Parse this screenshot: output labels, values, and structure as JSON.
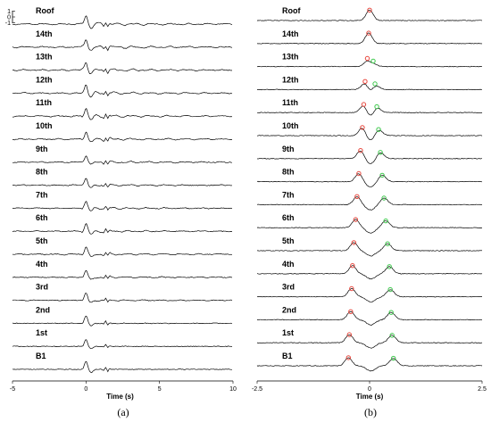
{
  "chart_data": [
    {
      "type": "line",
      "panel_label": "(a)",
      "xlabel": "Time (s)",
      "xlim": [
        -5,
        10
      ],
      "xticks": [
        -5,
        0,
        5,
        10
      ],
      "scale_ticks": [
        1,
        0,
        -1
      ],
      "series": [
        {
          "name": "Roof",
          "pulse": 0,
          "amp": 0.9,
          "noise": 0.28
        },
        {
          "name": "14th",
          "pulse": 0,
          "amp": 0.85,
          "noise": 0.26
        },
        {
          "name": "13th",
          "pulse": 0,
          "amp": 0.85,
          "noise": 0.26
        },
        {
          "name": "12th",
          "pulse": 0,
          "amp": 0.85,
          "noise": 0.25
        },
        {
          "name": "11th",
          "pulse": 0,
          "amp": 0.8,
          "noise": 0.24
        },
        {
          "name": "10th",
          "pulse": 0,
          "amp": 0.8,
          "noise": 0.22
        },
        {
          "name": "9th",
          "pulse": 0,
          "amp": 0.75,
          "noise": 0.2
        },
        {
          "name": "8th",
          "pulse": 0,
          "amp": 0.75,
          "noise": 0.18
        },
        {
          "name": "7th",
          "pulse": 0,
          "amp": 0.7,
          "noise": 0.17
        },
        {
          "name": "6th",
          "pulse": 0,
          "amp": 0.75,
          "noise": 0.18
        },
        {
          "name": "5th",
          "pulse": 0,
          "amp": 0.75,
          "noise": 0.18
        },
        {
          "name": "4th",
          "pulse": 0,
          "amp": 0.7,
          "noise": 0.15
        },
        {
          "name": "3rd",
          "pulse": 0,
          "amp": 0.7,
          "noise": 0.12
        },
        {
          "name": "2nd",
          "pulse": 0,
          "amp": 0.7,
          "noise": 0.06
        },
        {
          "name": "1st",
          "pulse": 0,
          "amp": 0.65,
          "noise": 0.03
        },
        {
          "name": "B1",
          "pulse": 0,
          "amp": 0.8,
          "noise": 0.01
        }
      ]
    },
    {
      "type": "line",
      "panel_label": "(b)",
      "xlabel": "Time (s)",
      "xlim": [
        -2.5,
        2.5
      ],
      "xticks": [
        -2.5,
        0,
        2.5
      ],
      "series": [
        {
          "name": "Roof",
          "up_t": 0.0,
          "down_t": 0.0
        },
        {
          "name": "14th",
          "up_t": -0.02,
          "down_t": 0.02
        },
        {
          "name": "13th",
          "up_t": -0.05,
          "down_t": 0.08
        },
        {
          "name": "12th",
          "up_t": -0.1,
          "down_t": 0.12
        },
        {
          "name": "11th",
          "up_t": -0.13,
          "down_t": 0.16
        },
        {
          "name": "10th",
          "up_t": -0.16,
          "down_t": 0.2
        },
        {
          "name": "9th",
          "up_t": -0.2,
          "down_t": 0.24
        },
        {
          "name": "8th",
          "up_t": -0.24,
          "down_t": 0.28
        },
        {
          "name": "7th",
          "up_t": -0.28,
          "down_t": 0.32
        },
        {
          "name": "6th",
          "up_t": -0.31,
          "down_t": 0.36
        },
        {
          "name": "5th",
          "up_t": -0.35,
          "down_t": 0.4
        },
        {
          "name": "4th",
          "up_t": -0.38,
          "down_t": 0.44
        },
        {
          "name": "3rd",
          "up_t": -0.4,
          "down_t": 0.46
        },
        {
          "name": "2nd",
          "up_t": -0.42,
          "down_t": 0.48
        },
        {
          "name": "1st",
          "up_t": -0.45,
          "down_t": 0.5
        },
        {
          "name": "B1",
          "up_t": -0.47,
          "down_t": 0.53
        }
      ],
      "up_marker_color": "#e8463c",
      "down_marker_color": "#3cc84b"
    }
  ],
  "trace_color": "#000000"
}
